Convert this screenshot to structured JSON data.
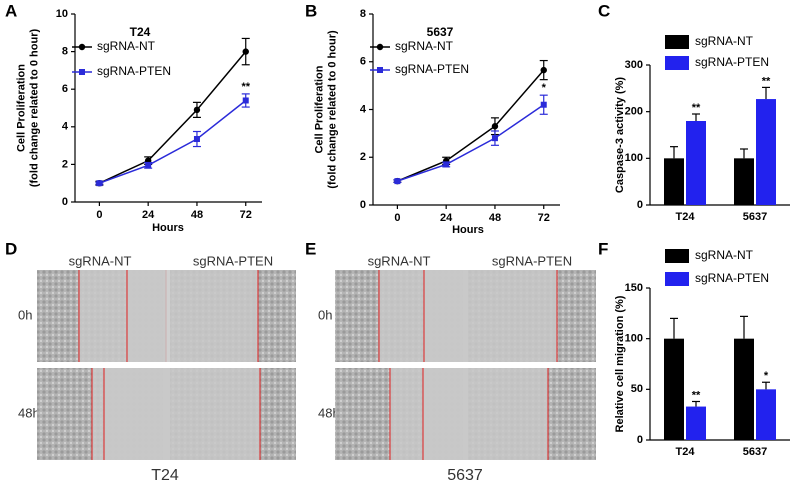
{
  "chart_data": [
    {
      "type": "line",
      "panel": "A",
      "title": "T24",
      "xlabel": "Hours",
      "ylabel": [
        "Cell Proliferation",
        "(fold change related to 0 hour)"
      ],
      "x": [
        0,
        24,
        48,
        72
      ],
      "xlim": [
        -12,
        80
      ],
      "xticks": [
        0,
        24,
        48,
        72
      ],
      "ylim": [
        0,
        10
      ],
      "yticks": [
        0,
        2,
        4,
        6,
        8,
        10
      ],
      "series": [
        {
          "name": "sgRNA-NT",
          "color": "#000000",
          "marker": "circle",
          "values": [
            1,
            2.2,
            4.9,
            8.0
          ],
          "errors": [
            0.1,
            0.2,
            0.4,
            0.7
          ],
          "sig": [
            null,
            null,
            null,
            null
          ]
        },
        {
          "name": "sgRNA-PTEN",
          "color": "#2b2bd9",
          "marker": "square",
          "values": [
            1,
            1.95,
            3.35,
            5.4
          ],
          "errors": [
            0.05,
            0.15,
            0.4,
            0.35
          ],
          "sig": [
            null,
            null,
            null,
            "**"
          ]
        }
      ]
    },
    {
      "type": "line",
      "panel": "B",
      "title": "5637",
      "xlabel": "Hours",
      "ylabel": [
        "Cell Proliferation",
        "(fold change related to 0 hour)"
      ],
      "x": [
        0,
        24,
        48,
        72
      ],
      "xlim": [
        -12,
        80
      ],
      "xticks": [
        0,
        24,
        48,
        72
      ],
      "ylim": [
        0,
        8
      ],
      "yticks": [
        0,
        2,
        4,
        6,
        8
      ],
      "series": [
        {
          "name": "sgRNA-NT",
          "color": "#000000",
          "marker": "circle",
          "values": [
            1,
            1.85,
            3.3,
            5.65
          ],
          "errors": [
            0.05,
            0.15,
            0.35,
            0.4
          ],
          "sig": [
            null,
            null,
            null,
            null
          ]
        },
        {
          "name": "sgRNA-PTEN",
          "color": "#2b2bd9",
          "marker": "square",
          "values": [
            1,
            1.7,
            2.8,
            4.2
          ],
          "errors": [
            0.05,
            0.1,
            0.3,
            0.4
          ],
          "sig": [
            null,
            null,
            null,
            "*"
          ]
        }
      ]
    },
    {
      "type": "bar",
      "panel": "C",
      "ylabel": [
        "Caspase-3 activity (%)"
      ],
      "categories": [
        "T24",
        "5637"
      ],
      "ylim": [
        0,
        300
      ],
      "yticks": [
        0,
        100,
        200,
        300
      ],
      "series": [
        {
          "name": "sgRNA-NT",
          "color": "#000000",
          "values": [
            100,
            100
          ],
          "errors": [
            25,
            20
          ],
          "sig": [
            null,
            null
          ]
        },
        {
          "name": "sgRNA-PTEN",
          "color": "#2222ee",
          "values": [
            180,
            227
          ],
          "errors": [
            15,
            25
          ],
          "sig": [
            "**",
            "**"
          ]
        }
      ]
    },
    {
      "type": "bar",
      "panel": "F",
      "ylabel": [
        "Relative cell migration (%)"
      ],
      "categories": [
        "T24",
        "5637"
      ],
      "ylim": [
        0,
        150
      ],
      "yticks": [
        0,
        50,
        100,
        150
      ],
      "series": [
        {
          "name": "sgRNA-NT",
          "color": "#000000",
          "values": [
            100,
            100
          ],
          "errors": [
            20,
            22
          ],
          "sig": [
            null,
            null
          ]
        },
        {
          "name": "sgRNA-PTEN",
          "color": "#2222ee",
          "values": [
            33,
            50
          ],
          "errors": [
            5,
            7
          ],
          "sig": [
            "**",
            "*"
          ]
        }
      ]
    }
  ],
  "migration_images": [
    {
      "panel": "D",
      "columns": [
        "sgRNA-NT",
        "sgRNA-PTEN"
      ],
      "rows": [
        "0h",
        "48h"
      ],
      "caption": "T24"
    },
    {
      "panel": "E",
      "columns": [
        "sgRNA-NT",
        "sgRNA-PTEN"
      ],
      "rows": [
        "0h",
        "48h"
      ],
      "caption": "5637"
    }
  ]
}
